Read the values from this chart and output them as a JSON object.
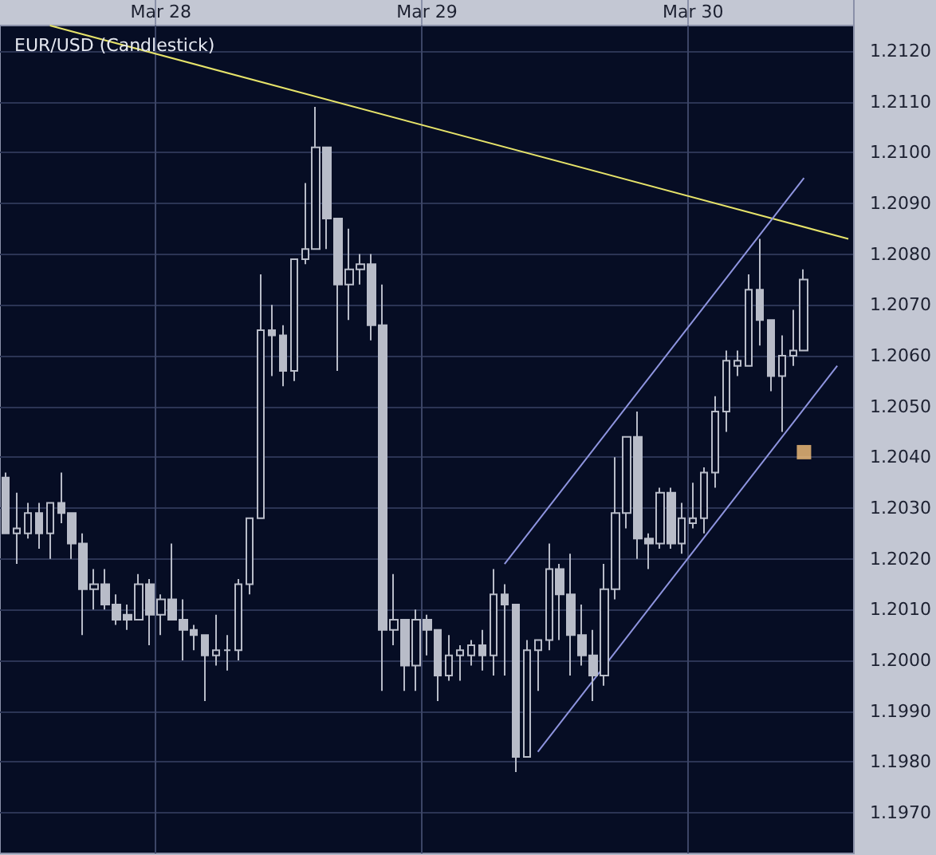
{
  "chart_data": {
    "type": "candlestick",
    "title": "EUR/USD (Candlestick)",
    "color": "#b8bcc8",
    "categories": [
      null,
      null,
      null,
      null,
      null,
      null,
      null,
      null,
      null,
      null,
      null,
      null,
      null,
      null,
      "Mar 28",
      null,
      null,
      null,
      null,
      null,
      null,
      null,
      null,
      null,
      null,
      null,
      null,
      null,
      null,
      null,
      null,
      null,
      null,
      null,
      null,
      null,
      null,
      null,
      "Mar 29",
      null,
      null,
      null,
      null,
      null,
      null,
      null,
      null,
      null,
      null,
      null,
      null,
      null,
      null,
      null,
      null,
      null,
      null,
      null,
      null,
      null,
      null,
      null,
      "Mar 30",
      null,
      null,
      null,
      null,
      null,
      null,
      null,
      null,
      null,
      null,
      null,
      null,
      null,
      null
    ],
    "ohlc": [
      [
        1.2036,
        1.2037,
        1.2025,
        1.2025
      ],
      [
        1.2025,
        1.2033,
        1.2019,
        1.2026
      ],
      [
        1.2025,
        1.2031,
        1.2024,
        1.2029
      ],
      [
        1.2029,
        1.2031,
        1.2022,
        1.2025
      ],
      [
        1.2025,
        1.2031,
        1.202,
        1.2031
      ],
      [
        1.2031,
        1.2037,
        1.2027,
        1.2029
      ],
      [
        1.2029,
        1.2029,
        1.202,
        1.2023
      ],
      [
        1.2023,
        1.2025,
        1.2005,
        1.2014
      ],
      [
        1.2014,
        1.2018,
        1.201,
        1.2015
      ],
      [
        1.2015,
        1.2018,
        1.201,
        1.2011
      ],
      [
        1.2011,
        1.2013,
        1.2007,
        1.2008
      ],
      [
        1.2009,
        1.2011,
        1.2006,
        1.2008
      ],
      [
        1.2008,
        1.2017,
        1.2008,
        1.2015
      ],
      [
        1.2015,
        1.2016,
        1.2003,
        1.2009
      ],
      [
        1.2009,
        1.2013,
        1.2005,
        1.2012
      ],
      [
        1.2012,
        1.2023,
        1.2008,
        1.2008
      ],
      [
        1.2008,
        1.2012,
        1.2,
        1.2006
      ],
      [
        1.2006,
        1.2007,
        1.2002,
        1.2005
      ],
      [
        1.2005,
        1.2005,
        1.1992,
        1.2001
      ],
      [
        1.2001,
        1.2009,
        1.1999,
        1.2002
      ],
      [
        1.2002,
        1.2005,
        1.1998,
        1.2002
      ],
      [
        1.2002,
        1.2016,
        1.2,
        1.2015
      ],
      [
        1.2015,
        1.2028,
        1.2013,
        1.2028
      ],
      [
        1.2028,
        1.2076,
        1.2028,
        1.2065
      ],
      [
        1.2065,
        1.207,
        1.2056,
        1.2064
      ],
      [
        1.2064,
        1.2066,
        1.2054,
        1.2057
      ],
      [
        1.2057,
        1.2079,
        1.2055,
        1.2079
      ],
      [
        1.2079,
        1.2094,
        1.2078,
        1.2081
      ],
      [
        1.2081,
        1.2109,
        1.2081,
        1.2101
      ],
      [
        1.2101,
        1.2101,
        1.2081,
        1.2087
      ],
      [
        1.2087,
        1.2087,
        1.2057,
        1.2074
      ],
      [
        1.2074,
        1.2085,
        1.2067,
        1.2077
      ],
      [
        1.2077,
        1.208,
        1.2074,
        1.2078
      ],
      [
        1.2078,
        1.208,
        1.2063,
        1.2066
      ],
      [
        1.2066,
        1.2074,
        1.1994,
        1.2006
      ],
      [
        1.2006,
        1.2017,
        1.2003,
        1.2008
      ],
      [
        1.2008,
        1.2008,
        1.1994,
        1.1999
      ],
      [
        1.1999,
        1.201,
        1.1994,
        1.2008
      ],
      [
        1.2008,
        1.2009,
        1.2001,
        1.2006
      ],
      [
        1.2006,
        1.2006,
        1.1992,
        1.1997
      ],
      [
        1.1997,
        1.2005,
        1.1996,
        1.2001
      ],
      [
        1.2001,
        1.2003,
        1.1996,
        1.2002
      ],
      [
        1.2001,
        1.2004,
        1.1999,
        1.2003
      ],
      [
        1.2003,
        1.2006,
        1.1998,
        1.2001
      ],
      [
        1.2001,
        1.2018,
        1.1997,
        1.2013
      ],
      [
        1.2013,
        1.2015,
        1.1997,
        1.2011
      ],
      [
        1.2011,
        1.2011,
        1.1978,
        1.1981
      ],
      [
        1.1981,
        1.2004,
        1.1981,
        1.2002
      ],
      [
        1.2002,
        1.2004,
        1.1994,
        1.2004
      ],
      [
        1.2004,
        1.2023,
        1.2002,
        1.2018
      ],
      [
        1.2018,
        1.2019,
        1.2004,
        1.2013
      ],
      [
        1.2013,
        1.2021,
        1.1997,
        1.2005
      ],
      [
        1.2005,
        1.2011,
        1.1999,
        1.2001
      ],
      [
        1.2001,
        1.2006,
        1.1992,
        1.1997
      ],
      [
        1.1997,
        1.2019,
        1.1995,
        1.2014
      ],
      [
        1.2014,
        1.204,
        1.2012,
        1.2029
      ],
      [
        1.2029,
        1.2044,
        1.2026,
        1.2044
      ],
      [
        1.2044,
        1.2049,
        1.202,
        1.2024
      ],
      [
        1.2024,
        1.2025,
        1.2018,
        1.2023
      ],
      [
        1.2023,
        1.2034,
        1.2022,
        1.2033
      ],
      [
        1.2033,
        1.2034,
        1.2022,
        1.2023
      ],
      [
        1.2023,
        1.2031,
        1.2021,
        1.2028
      ],
      [
        1.2027,
        1.2035,
        1.2026,
        1.2028
      ],
      [
        1.2028,
        1.2038,
        1.2025,
        1.2037
      ],
      [
        1.2037,
        1.2052,
        1.2034,
        1.2049
      ],
      [
        1.2049,
        1.2061,
        1.2045,
        1.2059
      ],
      [
        1.2058,
        1.2061,
        1.2056,
        1.2059
      ],
      [
        1.2058,
        1.2076,
        1.2058,
        1.2073
      ],
      [
        1.2073,
        1.2083,
        1.2062,
        1.2067
      ],
      [
        1.2067,
        1.2067,
        1.2053,
        1.2056
      ],
      [
        1.2056,
        1.2064,
        1.2045,
        1.206
      ],
      [
        1.206,
        1.2069,
        1.2058,
        1.2061
      ],
      [
        1.2061,
        1.2077,
        1.2061,
        1.2075
      ],
      null,
      null,
      null,
      null
    ],
    "series": [
      {
        "type": "line",
        "color": "#e6e36a",
        "values": [
          null,
          null,
          null,
          null,
          1.2125,
          null,
          null,
          null,
          null,
          null,
          null,
          null,
          null,
          null,
          null,
          null,
          null,
          null,
          null,
          null,
          null,
          null,
          null,
          null,
          null,
          null,
          null,
          null,
          null,
          null,
          null,
          null,
          null,
          null,
          null,
          null,
          null,
          null,
          null,
          null,
          null,
          null,
          null,
          null,
          null,
          null,
          null,
          null,
          null,
          null,
          null,
          null,
          null,
          null,
          null,
          null,
          null,
          null,
          null,
          null,
          null,
          null,
          null,
          null,
          null,
          null,
          null,
          null,
          null,
          null,
          null,
          null,
          null,
          null,
          null,
          null,
          1.2083
        ]
      },
      {
        "type": "line",
        "color": "#8f95e0",
        "values": [
          null,
          null,
          null,
          null,
          null,
          null,
          null,
          null,
          null,
          null,
          null,
          null,
          null,
          null,
          null,
          null,
          null,
          null,
          null,
          null,
          null,
          null,
          null,
          null,
          null,
          null,
          null,
          null,
          null,
          null,
          null,
          null,
          null,
          null,
          null,
          null,
          null,
          null,
          null,
          null,
          null,
          null,
          null,
          null,
          null,
          1.2019,
          null,
          null,
          null,
          null,
          null,
          null,
          null,
          null,
          null,
          null,
          null,
          null,
          null,
          null,
          null,
          null,
          null,
          null,
          null,
          null,
          null,
          null,
          null,
          null,
          null,
          null,
          1.2095,
          null,
          null,
          null,
          null
        ]
      },
      {
        "type": "line",
        "color": "#8f95e0",
        "values": [
          null,
          null,
          null,
          null,
          null,
          null,
          null,
          null,
          null,
          null,
          null,
          null,
          null,
          null,
          null,
          null,
          null,
          null,
          null,
          null,
          null,
          null,
          null,
          null,
          null,
          null,
          null,
          null,
          null,
          null,
          null,
          null,
          null,
          null,
          null,
          null,
          null,
          null,
          null,
          null,
          null,
          null,
          null,
          null,
          null,
          null,
          null,
          null,
          1.1982,
          null,
          null,
          null,
          null,
          null,
          null,
          null,
          null,
          null,
          null,
          null,
          null,
          null,
          null,
          null,
          null,
          null,
          null,
          null,
          null,
          null,
          null,
          null,
          null,
          null,
          null,
          1.2058,
          null
        ]
      },
      {
        "type": "scatter",
        "color": "#f7c27a",
        "marker": "square",
        "values": [
          null,
          null,
          null,
          null,
          null,
          null,
          null,
          null,
          null,
          null,
          null,
          null,
          null,
          null,
          null,
          null,
          null,
          null,
          null,
          null,
          null,
          null,
          null,
          null,
          null,
          null,
          null,
          null,
          null,
          null,
          null,
          null,
          null,
          null,
          null,
          null,
          null,
          null,
          null,
          null,
          null,
          null,
          null,
          null,
          null,
          null,
          null,
          null,
          null,
          null,
          null,
          null,
          null,
          null,
          null,
          null,
          null,
          null,
          null,
          null,
          null,
          null,
          null,
          null,
          null,
          null,
          null,
          null,
          null,
          null,
          null,
          null,
          1.2041,
          null,
          null,
          null,
          null
        ]
      }
    ],
    "ylim": [
      1.1962,
      1.2125
    ],
    "yticks": [
      {
        "value": 1.197,
        "label": "1.1970"
      },
      {
        "value": 1.198,
        "label": "1.1980"
      },
      {
        "value": 1.199,
        "label": "1.1990"
      },
      {
        "value": 1.2,
        "label": "1.2000"
      },
      {
        "value": 1.201,
        "label": "1.2010"
      },
      {
        "value": 1.202,
        "label": "1.2020"
      },
      {
        "value": 1.203,
        "label": "1.2030"
      },
      {
        "value": 1.204,
        "label": "1.2040"
      },
      {
        "value": 1.205,
        "label": "1.2050"
      },
      {
        "value": 1.206,
        "label": "1.2060"
      },
      {
        "value": 1.207,
        "label": "1.2070"
      },
      {
        "value": 1.208,
        "label": "1.2080"
      },
      {
        "value": 1.209,
        "label": "1.2090"
      },
      {
        "value": 1.21,
        "label": "1.2100"
      },
      {
        "value": 1.211,
        "label": "1.2110"
      },
      {
        "value": 1.212,
        "label": "1.2120"
      }
    ],
    "grid": true
  }
}
